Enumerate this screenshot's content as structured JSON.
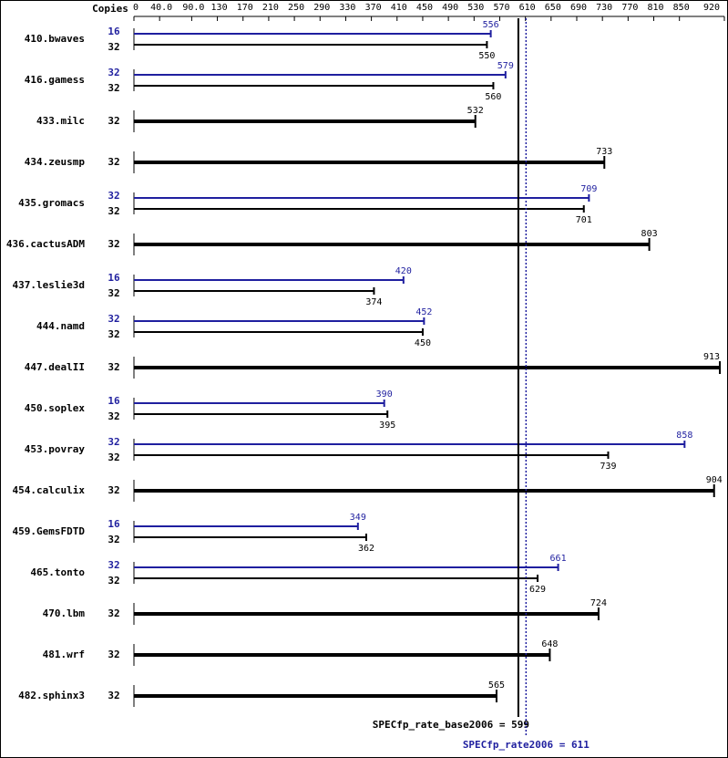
{
  "chart_data": {
    "type": "bar",
    "orientation": "horizontal",
    "copies_label": "Copies",
    "categories": [
      "410.bwaves",
      "416.gamess",
      "433.milc",
      "434.zeusmp",
      "435.gromacs",
      "436.cactusADM",
      "437.leslie3d",
      "444.namd",
      "447.dealII",
      "450.soplex",
      "453.povray",
      "454.calculix",
      "459.GemsFDTD",
      "465.tonto",
      "470.lbm",
      "481.wrf",
      "482.sphinx3"
    ],
    "xlim": [
      0,
      920
    ],
    "xticks": [
      0,
      {
        "value": 40,
        "label": "40.0"
      },
      {
        "value": 90,
        "label": "90.0"
      },
      130,
      170,
      210,
      250,
      290,
      330,
      370,
      410,
      450,
      490,
      530,
      570,
      610,
      650,
      690,
      730,
      770,
      810,
      850,
      920
    ],
    "series": [
      {
        "color": "#000000",
        "copies": [
          32,
          32,
          32,
          32,
          32,
          32,
          32,
          32,
          32,
          32,
          32,
          32,
          32,
          32,
          32,
          32,
          32
        ],
        "values": [
          550,
          560,
          532,
          733,
          701,
          803,
          374,
          450,
          913,
          395,
          739,
          904,
          362,
          629,
          724,
          648,
          565
        ]
      },
      {
        "color": "#1f1f9f",
        "copies": [
          16,
          32,
          null,
          null,
          32,
          null,
          16,
          32,
          null,
          16,
          32,
          null,
          16,
          32,
          null,
          null,
          null
        ],
        "values": [
          556,
          579,
          null,
          null,
          709,
          null,
          420,
          452,
          null,
          390,
          858,
          null,
          349,
          661,
          null,
          null,
          null
        ]
      }
    ],
    "reference_lines": [
      {
        "label": "SPECfp_rate_base2006 = 599",
        "value": 599,
        "color": "#000000",
        "style": "solid"
      },
      {
        "label": "SPECfp_rate2006 = 611",
        "value": 611,
        "color": "#1f1f9f",
        "style": "dotted"
      }
    ]
  }
}
